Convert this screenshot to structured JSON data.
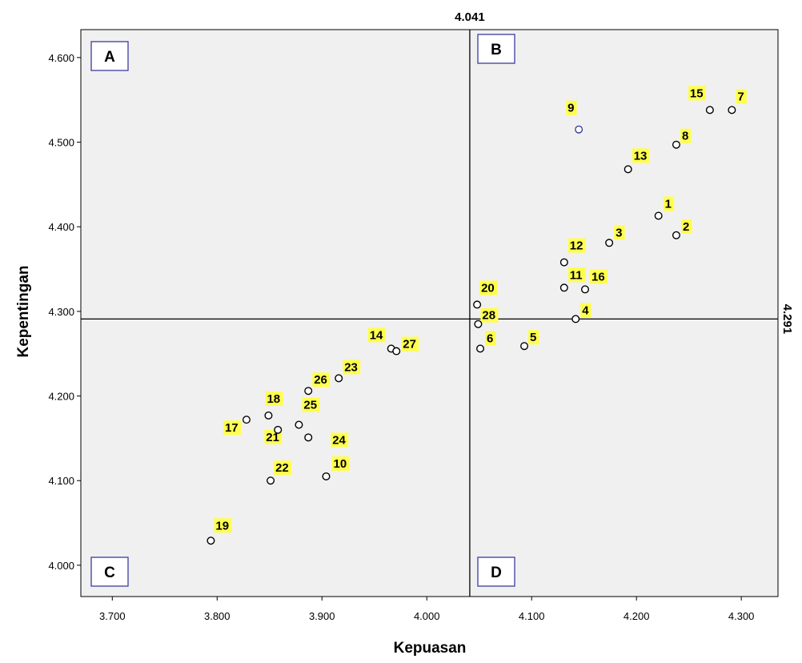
{
  "chart_data": {
    "type": "scatter",
    "xlabel": "Kepuasan",
    "ylabel": "Kepentingan",
    "xlim": [
      3.67,
      4.335
    ],
    "ylim": [
      3.963,
      4.633
    ],
    "x_ticks": [
      3.7,
      3.8,
      3.9,
      4.0,
      4.1,
      4.2,
      4.3
    ],
    "x_tick_labels": [
      "3.700",
      "3.800",
      "3.900",
      "4.000",
      "4.100",
      "4.200",
      "4.300"
    ],
    "y_ticks": [
      4.0,
      4.1,
      4.2,
      4.3,
      4.4,
      4.5,
      4.6
    ],
    "y_tick_labels": [
      "4.000",
      "4.100",
      "4.200",
      "4.300",
      "4.400",
      "4.500",
      "4.600"
    ],
    "reference_lines": {
      "x": {
        "value": 4.041,
        "label": "4.041"
      },
      "y": {
        "value": 4.291,
        "label": "4.291"
      }
    },
    "quadrants": [
      "A",
      "B",
      "C",
      "D"
    ],
    "grid": false,
    "background_color": "#f0f0f0",
    "marker_color": "#000000",
    "highlight_color": "#3c3ca0",
    "label_bg_color": "#ffff4d",
    "points": [
      {
        "label": "1",
        "x": 4.221,
        "y": 4.413
      },
      {
        "label": "2",
        "x": 4.238,
        "y": 4.39
      },
      {
        "label": "3",
        "x": 4.174,
        "y": 4.381
      },
      {
        "label": "4",
        "x": 4.142,
        "y": 4.291
      },
      {
        "label": "5",
        "x": 4.093,
        "y": 4.259
      },
      {
        "label": "6",
        "x": 4.051,
        "y": 4.256
      },
      {
        "label": "7",
        "x": 4.291,
        "y": 4.538
      },
      {
        "label": "8",
        "x": 4.238,
        "y": 4.497
      },
      {
        "label": "9",
        "x": 4.145,
        "y": 4.515,
        "highlight": true
      },
      {
        "label": "10",
        "x": 3.904,
        "y": 4.105
      },
      {
        "label": "11",
        "x": 4.131,
        "y": 4.328
      },
      {
        "label": "12",
        "x": 4.131,
        "y": 4.358
      },
      {
        "label": "13",
        "x": 4.192,
        "y": 4.468
      },
      {
        "label": "14",
        "x": 3.966,
        "y": 4.256
      },
      {
        "label": "15",
        "x": 4.27,
        "y": 4.538
      },
      {
        "label": "16",
        "x": 4.151,
        "y": 4.326
      },
      {
        "label": "17",
        "x": 3.828,
        "y": 4.172
      },
      {
        "label": "18",
        "x": 3.849,
        "y": 4.177
      },
      {
        "label": "19",
        "x": 3.794,
        "y": 4.029
      },
      {
        "label": "20",
        "x": 4.048,
        "y": 4.308
      },
      {
        "label": "21",
        "x": 3.858,
        "y": 4.16
      },
      {
        "label": "22",
        "x": 3.851,
        "y": 4.1
      },
      {
        "label": "23",
        "x": 3.916,
        "y": 4.221
      },
      {
        "label": "24",
        "x": 3.887,
        "y": 4.151
      },
      {
        "label": "25",
        "x": 3.878,
        "y": 4.166
      },
      {
        "label": "26",
        "x": 3.887,
        "y": 4.206
      },
      {
        "label": "27",
        "x": 3.971,
        "y": 4.253
      },
      {
        "label": "28",
        "x": 4.049,
        "y": 4.285
      }
    ]
  }
}
